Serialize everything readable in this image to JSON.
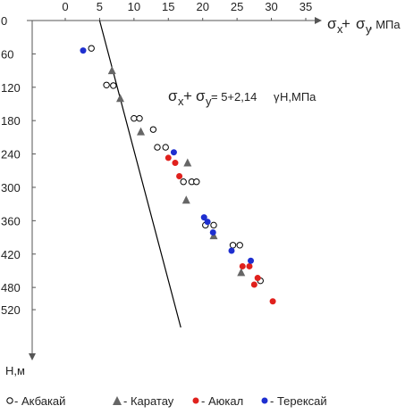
{
  "chart_data": {
    "type": "scatter",
    "x_axis": {
      "label_sigma1": "σ",
      "label_sub1": "x",
      "label_plus": " + ",
      "label_sigma2": "σ",
      "label_sub2": "y",
      "label_unit": ", МПа",
      "range": [
        0,
        35
      ],
      "ticks": [
        0,
        5,
        10,
        15,
        20,
        25,
        30,
        35
      ],
      "position": "top"
    },
    "y_axis": {
      "label": "Н,м",
      "range": [
        0,
        560
      ],
      "ticks": [
        0,
        60,
        120,
        180,
        240,
        300,
        360,
        420,
        480,
        520
      ],
      "inverted": true
    },
    "equation": {
      "sigma1": "σ",
      "sub1": "x",
      "plus": " + ",
      "sigma2": "σ",
      "sub2": "y",
      "rest": " = 5+2,14 ",
      "gamma": "γ",
      "tail": "Н,МПа"
    },
    "trend_line": {
      "intercept": 5,
      "slope": 0.0214,
      "depth_from": 0,
      "depth_to": 552,
      "color": "#000000"
    },
    "series": [
      {
        "name": "Акбакай",
        "marker": "open-circle",
        "color": "#000000",
        "points": [
          [
            3.8,
            50
          ],
          [
            6,
            116
          ],
          [
            7,
            117
          ],
          [
            10,
            176
          ],
          [
            10.8,
            176
          ],
          [
            12.8,
            196
          ],
          [
            13.4,
            228
          ],
          [
            14.6,
            228
          ],
          [
            17.2,
            290
          ],
          [
            18.4,
            290
          ],
          [
            19.1,
            290
          ],
          [
            20.4,
            368
          ],
          [
            21.6,
            368
          ],
          [
            24.4,
            404
          ],
          [
            25.4,
            404
          ],
          [
            28.4,
            468
          ]
        ]
      },
      {
        "name": "Каратау",
        "marker": "triangle",
        "color": "#666666",
        "points": [
          [
            6.8,
            90
          ],
          [
            8,
            140
          ],
          [
            11,
            200
          ],
          [
            17.8,
            256
          ],
          [
            17.6,
            323
          ],
          [
            21.6,
            387
          ],
          [
            25.6,
            453
          ]
        ]
      },
      {
        "name": "Аюкал",
        "marker": "filled-circle",
        "color": "#e0211d",
        "points": [
          [
            15,
            247
          ],
          [
            16,
            256
          ],
          [
            16.6,
            280
          ],
          [
            25.8,
            442
          ],
          [
            26.8,
            442
          ],
          [
            28,
            463
          ],
          [
            27.5,
            475
          ],
          [
            30.2,
            505
          ]
        ]
      },
      {
        "name": "Терексай",
        "marker": "filled-circle",
        "color": "#1e2fd0",
        "points": [
          [
            2.6,
            54
          ],
          [
            15.8,
            237
          ],
          [
            20.2,
            354
          ],
          [
            20.7,
            362
          ],
          [
            21.5,
            381
          ],
          [
            24.2,
            414
          ],
          [
            27,
            432
          ]
        ]
      }
    ],
    "legend": {
      "position": "bottom",
      "items": [
        {
          "label": " - Акбакай"
        },
        {
          "label": " - Каратау"
        },
        {
          "label": " - Аюкал"
        },
        {
          "label": " - Терексай"
        }
      ]
    }
  }
}
